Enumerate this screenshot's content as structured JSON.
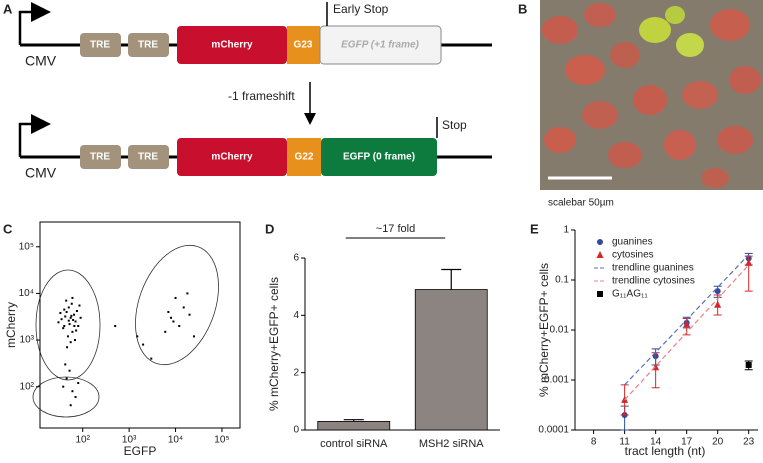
{
  "figure": {
    "panel_labels": [
      "A",
      "B",
      "C",
      "D",
      "E"
    ]
  },
  "diagram": {
    "top": {
      "promoter": "CMV",
      "elements": [
        "TRE",
        "TRE",
        "mCherry",
        "G23",
        "EGFP (+1 frame)"
      ],
      "stop": "Early Stop"
    },
    "arrow": "-1 frameshift",
    "bottom": {
      "promoter": "CMV",
      "elements": [
        "TRE",
        "TRE",
        "mCherry",
        "G22",
        "EGFP (0 frame)"
      ],
      "stop": "Stop"
    }
  },
  "image": {
    "scalebar": "scalebar 50µm"
  },
  "chart_data": [
    {
      "type": "scatter",
      "x_label": "EGFP",
      "y_label": "mCherry",
      "color": "#000000",
      "log_x": true,
      "log_y": true,
      "frame": true,
      "x": [
        40,
        55,
        60,
        45,
        70,
        35,
        50,
        65,
        48,
        80,
        38,
        58,
        75,
        42,
        52,
        62,
        30,
        90,
        55,
        46,
        68,
        33,
        85,
        44,
        60,
        72,
        50,
        57,
        40,
        66,
        45,
        60,
        38,
        70,
        52,
        80,
        55,
        42,
        8000,
        12000,
        15000,
        6000,
        20000,
        10000,
        25000,
        9000,
        18000,
        7000,
        2000,
        1500,
        500,
        3000
      ],
      "values": [
        2000,
        3000,
        1500,
        4000,
        2500,
        2800,
        5000,
        3500,
        1200,
        2000,
        1800,
        6000,
        4200,
        3200,
        2200,
        2700,
        2400,
        3000,
        900,
        700,
        1000,
        3800,
        5500,
        7000,
        8000,
        1600,
        2600,
        3300,
        4500,
        2000,
        150,
        80,
        100,
        60,
        220,
        120,
        40,
        300,
        3000,
        2000,
        5000,
        1500,
        3500,
        8000,
        1200,
        2500,
        10000,
        4000,
        800,
        1200,
        2000,
        400
      ],
      "xlim": [
        12,
        245000
      ],
      "ylim": [
        13,
        340000
      ],
      "xticks": [
        {
          "value": 100,
          "label": "10²"
        },
        {
          "value": 1000,
          "label": "10³"
        },
        {
          "value": 10000,
          "label": "10⁴"
        },
        {
          "value": 100000,
          "label": "10⁵"
        }
      ],
      "yticks": [
        {
          "value": 100,
          "label": "10²"
        },
        {
          "value": 1000,
          "label": "10³"
        },
        {
          "value": 10000,
          "label": "10⁴"
        },
        {
          "value": 100000,
          "label": "10⁵"
        }
      ]
    },
    {
      "type": "bar",
      "y_label": "% mCherry+EGFP+ cells",
      "annotation": "~17 fold",
      "categories": [
        "control siRNA",
        "MSH2 siRNA"
      ],
      "values": [
        0.3,
        4.9
      ],
      "errors": [
        0.06,
        0.7
      ],
      "color": "#8c8480",
      "ylim": [
        0,
        6
      ],
      "yticks": [
        0,
        2,
        4,
        6
      ]
    },
    {
      "type": "line",
      "x_label": "tract length (nt)",
      "y_label": "% mCherry+EGFP+ cells",
      "log_y": true,
      "xlim": [
        6.2,
        23.9
      ],
      "ylim": [
        0.0001,
        1
      ],
      "xticks": [
        8,
        11,
        14,
        17,
        20,
        23
      ],
      "yticks": [
        0.0001,
        0.001,
        0.01,
        0.1,
        1
      ],
      "series": [
        {
          "name": "guanines",
          "color": "#2f4a9e",
          "marker": "circle",
          "x": [
            11,
            14,
            17,
            20,
            23
          ],
          "values": [
            0.0002,
            0.003,
            0.014,
            0.06,
            0.27
          ],
          "lower": [
            0.0001,
            0.002,
            0.011,
            0.045,
            0.2
          ],
          "upper": [
            0.0003,
            0.0042,
            0.018,
            0.075,
            0.34
          ]
        },
        {
          "name": "cytosines",
          "color": "#d62728",
          "marker": "triangle",
          "x": [
            11,
            14,
            17,
            20,
            23
          ],
          "values": [
            0.0004,
            0.0018,
            0.013,
            0.032,
            0.22
          ],
          "lower": [
            0.0002,
            0.0007,
            0.008,
            0.02,
            0.06
          ],
          "upper": [
            0.0008,
            0.0035,
            0.017,
            0.05,
            0.3
          ]
        },
        {
          "name": "trendline guanines",
          "color": "#5b6fb5",
          "dash": true,
          "x": [
            11,
            23
          ],
          "values": [
            0.0008,
            0.32
          ]
        },
        {
          "name": "trendline cytosines",
          "color": "#f08080",
          "dash": true,
          "x": [
            11,
            23
          ],
          "values": [
            0.0004,
            0.2
          ]
        },
        {
          "name": "G₁₁AG₁₁",
          "color": "#000000",
          "marker": "square",
          "x": [
            23
          ],
          "values": [
            0.002
          ],
          "lower": [
            0.0016
          ],
          "upper": [
            0.0024
          ]
        }
      ]
    }
  ]
}
